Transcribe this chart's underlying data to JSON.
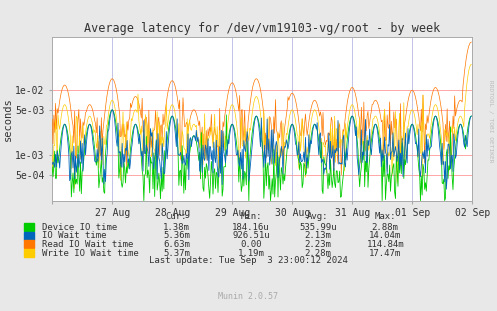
{
  "title": "Average latency for /dev/vm19103-vg/root - by week",
  "ylabel": "seconds",
  "background_color": "#e8e8e8",
  "plot_bg_color": "#ffffff",
  "grid_color": "#ff9999",
  "yticks": [
    0.0005,
    0.001,
    0.005,
    0.01
  ],
  "ytick_labels": [
    "5e-04",
    "1e-03",
    "5e-03",
    "1e-02"
  ],
  "ylim": [
    0.0002,
    0.065
  ],
  "xlim": [
    0,
    504
  ],
  "xtick_positions": [
    0,
    72,
    144,
    216,
    288,
    360,
    432,
    504
  ],
  "xtick_labels": [
    "",
    "27 Aug",
    "28 Aug",
    "29 Aug",
    "30 Aug",
    "31 Aug",
    "01 Sep",
    "02 Sep"
  ],
  "vline_positions": [
    72,
    144,
    216,
    288,
    360,
    432,
    504
  ],
  "series": {
    "device_io": {
      "color": "#00cc00",
      "label": "Device IO time"
    },
    "io_wait": {
      "color": "#0066bb",
      "label": "IO Wait time"
    },
    "read_io_wait": {
      "color": "#ff7700",
      "label": "Read IO Wait time"
    },
    "write_io_wait": {
      "color": "#ffcc00",
      "label": "Write IO Wait time"
    }
  },
  "legend_stats": {
    "headers": [
      "Cur:",
      "Min:",
      "Avg:",
      "Max:"
    ],
    "rows": [
      [
        "Device IO time",
        "1.38m",
        "184.16u",
        "535.99u",
        "2.88m"
      ],
      [
        "IO Wait time",
        "5.36m",
        "926.51u",
        "2.13m",
        "14.04m"
      ],
      [
        "Read IO Wait time",
        "6.63m",
        "0.00",
        "2.23m",
        "114.84m"
      ],
      [
        "Write IO Wait time",
        "5.37m",
        "1.19m",
        "2.28m",
        "17.47m"
      ]
    ]
  },
  "legend_colors": [
    "#00cc00",
    "#0066bb",
    "#ff7700",
    "#ffcc00"
  ],
  "last_update": "Last update: Tue Sep  3 23:00:12 2024",
  "munin_version": "Munin 2.0.57",
  "rrdtool_label": "RRDTOOL / TOBI OETIKER",
  "title_color": "#333333",
  "text_color": "#333333"
}
